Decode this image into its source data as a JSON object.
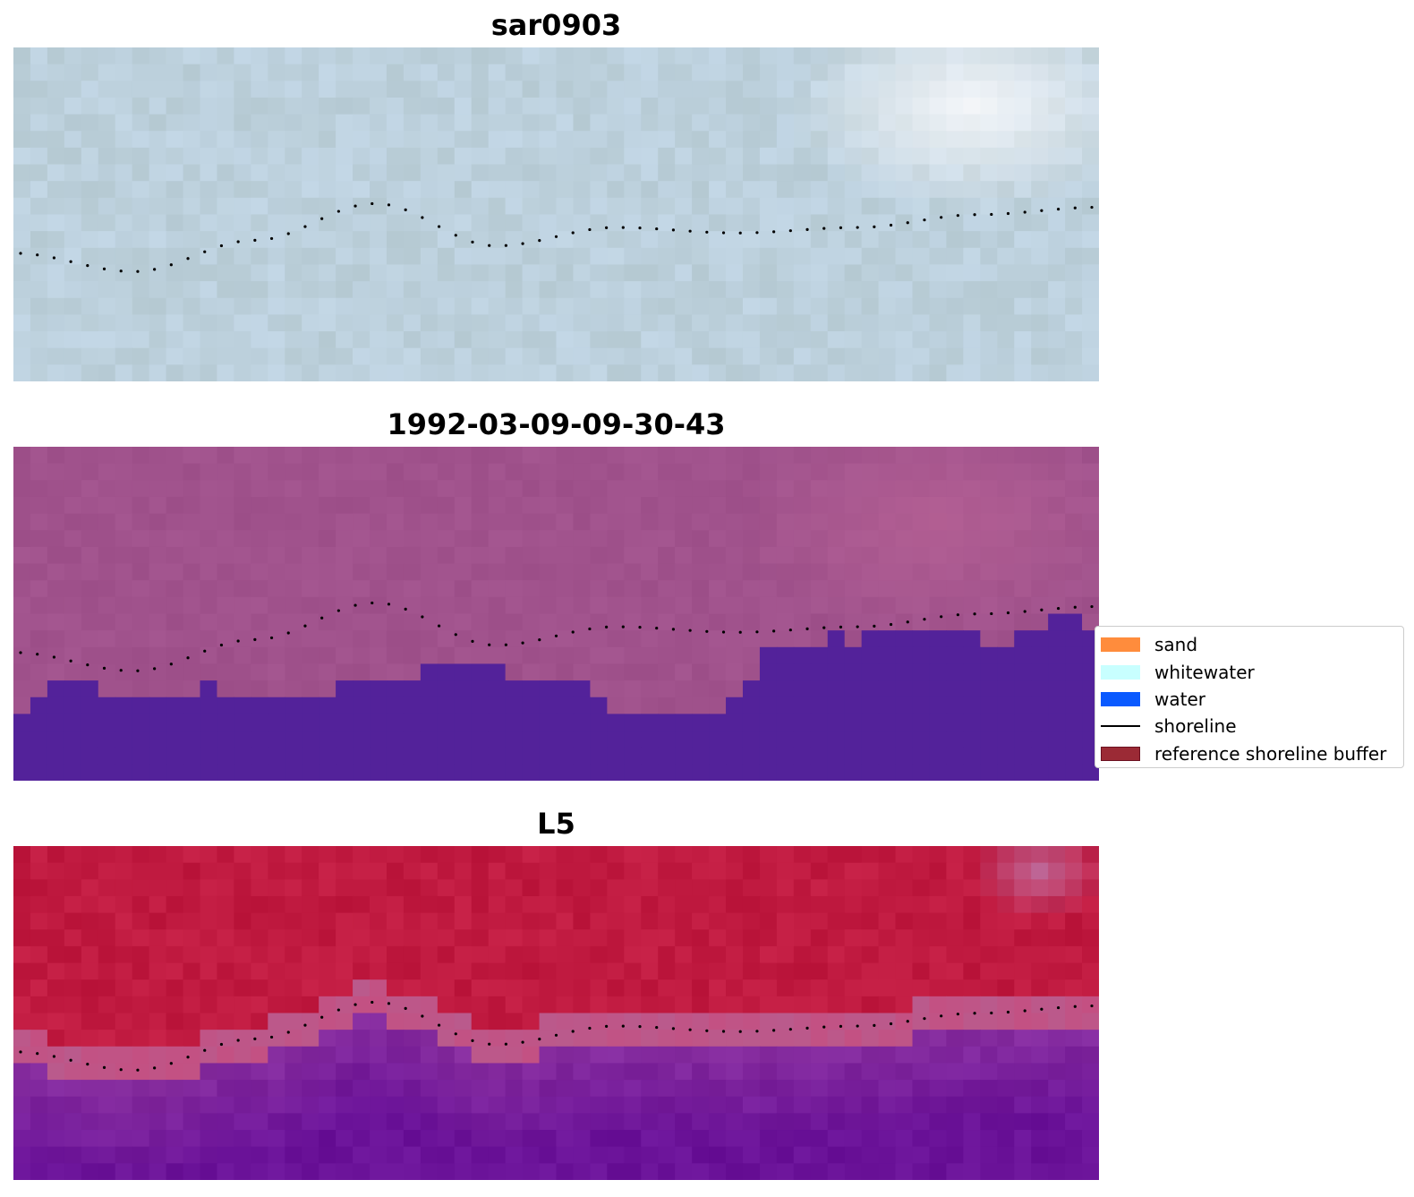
{
  "panels": [
    {
      "title": "sar0903",
      "style": "rgb"
    },
    {
      "title": "1992-03-09-09-30-43",
      "style": "classified"
    },
    {
      "title": "L5",
      "style": "index"
    }
  ],
  "legend": {
    "position": "center-right",
    "items": [
      {
        "label": "sand",
        "kind": "patch",
        "color": "#ff8c3c"
      },
      {
        "label": "whitewater",
        "kind": "patch",
        "color": "#c8ffff"
      },
      {
        "label": "water",
        "kind": "patch",
        "color": "#0a5aff"
      },
      {
        "label": "shoreline",
        "kind": "line",
        "color": "#000000"
      },
      {
        "label": "reference shoreline buffer",
        "kind": "patch",
        "color": "#9b2a35",
        "edge": "#6b1020"
      }
    ]
  },
  "colors": {
    "rgb_base": "#bcd0dc",
    "classified_land": "#a0528c",
    "classified_water": "#53229a",
    "index_high": "#c01a40",
    "index_low": "#6a1298"
  },
  "shoreline_profile": [
    0.72,
    0.82,
    0.65,
    0.45,
    0.68,
    0.58,
    0.61,
    0.58,
    0.51,
    0.47
  ]
}
